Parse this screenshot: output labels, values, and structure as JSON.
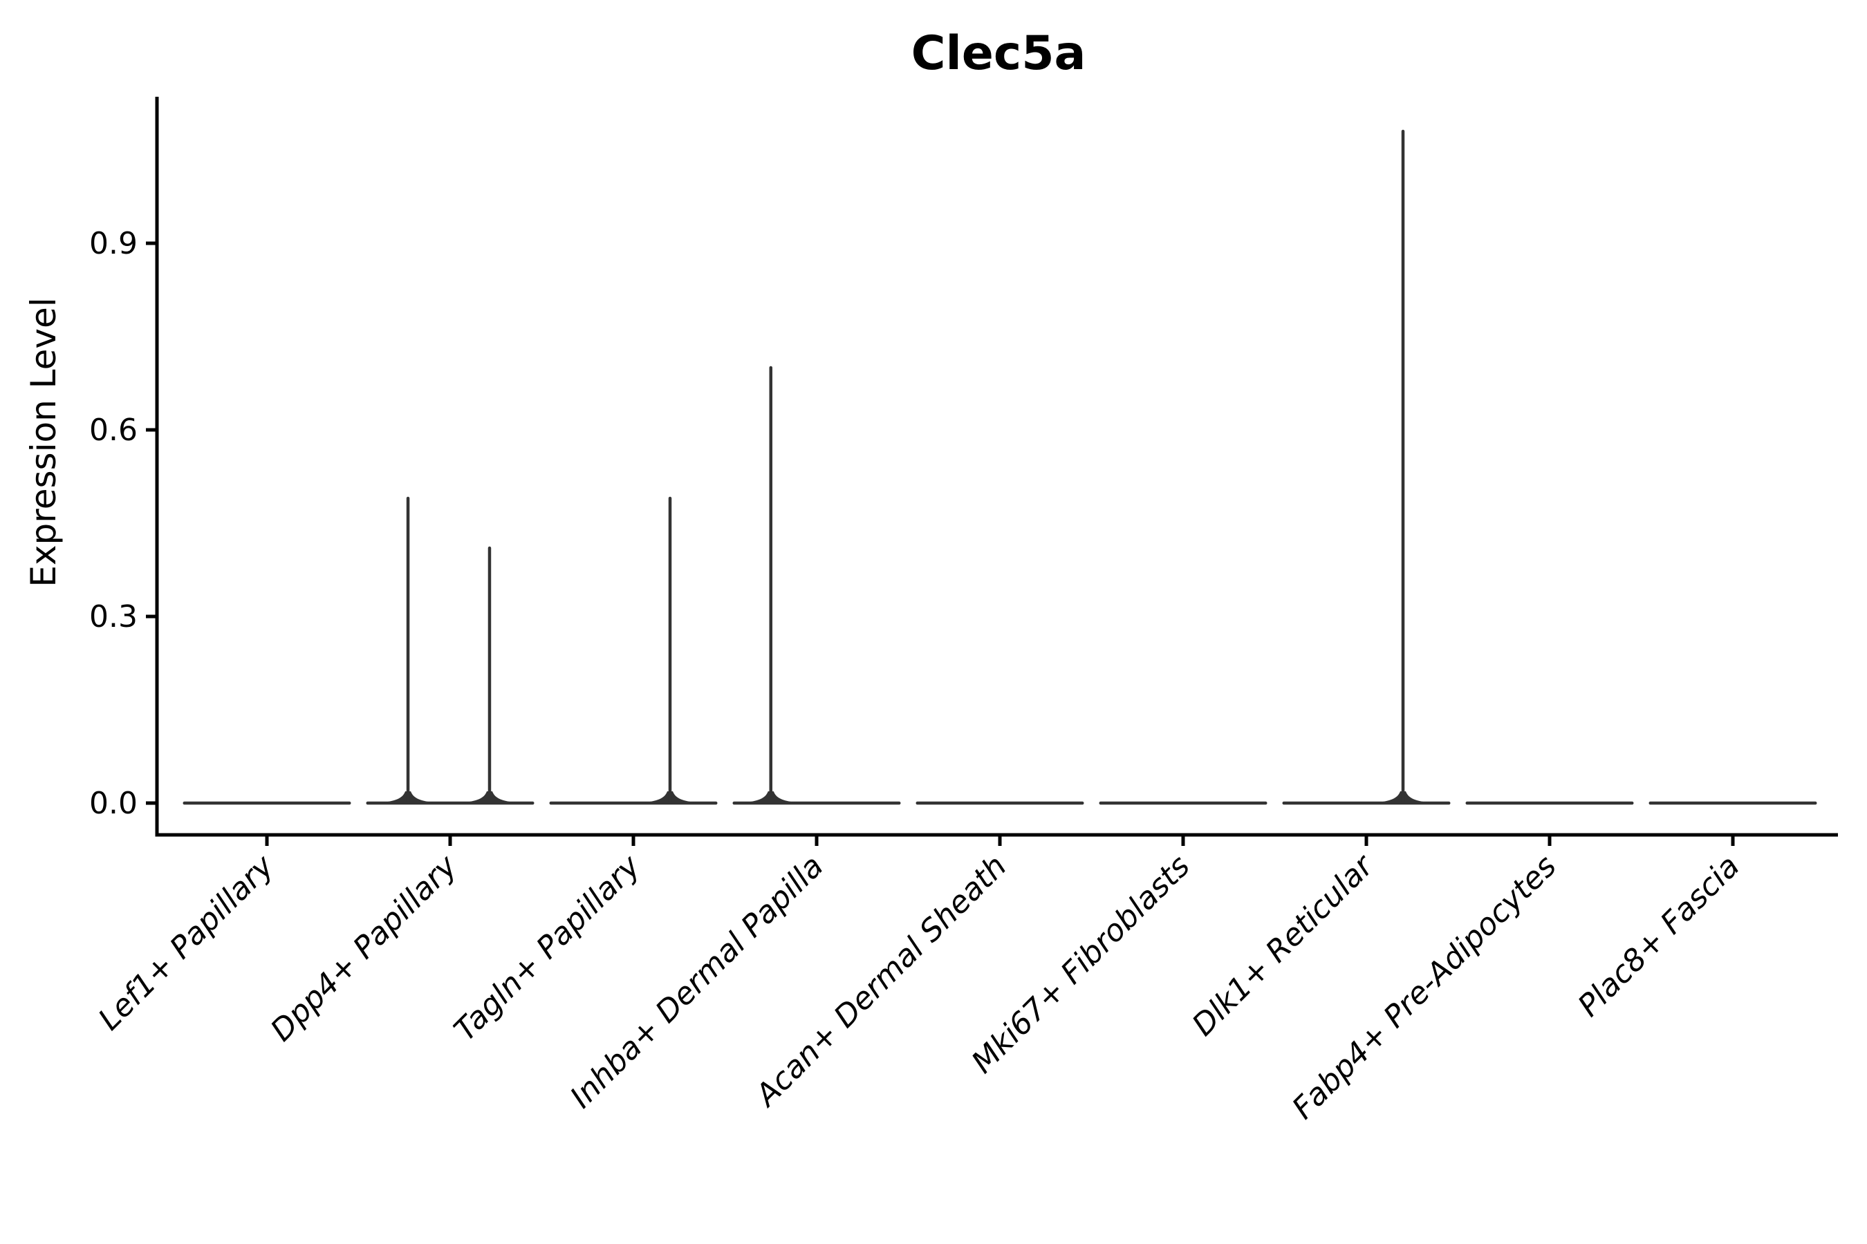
{
  "chart_data": {
    "type": "violin",
    "title": "Clec5a",
    "ylabel": "Expression Level",
    "xlabel": "",
    "ytick_labels": [
      "0.0",
      "0.3",
      "0.6",
      "0.9"
    ],
    "ytick_values": [
      0.0,
      0.3,
      0.6,
      0.9
    ],
    "ylim": [
      -0.05,
      1.14
    ],
    "grid": false,
    "legend": "none",
    "x_tick_rotation": 45,
    "violin_width_fraction": 0.9,
    "baseline_value": 0.0,
    "categories": [
      "Lef1+ Papillary",
      "Dpp4+ Papillary",
      "Tagln+ Papillary",
      "Inhba+ Dermal Papilla",
      "Acan+ Dermal Sheath",
      "Mki67+ Fibroblasts",
      "Dlk1+ Reticular",
      "Fabp4+ Pre-Adipocytes",
      "Plac8+ Fascia"
    ],
    "series": [
      {
        "label": "Lef1+ Papillary",
        "max_expression": 0.0,
        "spikes": []
      },
      {
        "label": "Dpp4+ Papillary",
        "max_expression": 0.49,
        "spikes": [
          {
            "offset": -0.23,
            "value": 0.49
          },
          {
            "offset": 0.215,
            "value": 0.41
          }
        ]
      },
      {
        "label": "Tagln+ Papillary",
        "max_expression": 0.49,
        "spikes": [
          {
            "offset": 0.2,
            "value": 0.49
          }
        ]
      },
      {
        "label": "Inhba+ Dermal Papilla",
        "max_expression": 0.7,
        "spikes": [
          {
            "offset": -0.25,
            "value": 0.7
          }
        ]
      },
      {
        "label": "Acan+ Dermal Sheath",
        "max_expression": 0.0,
        "spikes": []
      },
      {
        "label": "Mki67+ Fibroblasts",
        "max_expression": 0.0,
        "spikes": []
      },
      {
        "label": "Dlk1+ Reticular",
        "max_expression": 1.08,
        "spikes": [
          {
            "offset": 0.2,
            "value": 1.08
          }
        ]
      },
      {
        "label": "Fabp4+ Pre-Adipocytes",
        "max_expression": 0.0,
        "spikes": []
      },
      {
        "label": "Plac8+ Fascia",
        "max_expression": 0.0,
        "spikes": []
      }
    ],
    "colors": {
      "violin_stroke": "#333333",
      "axis": "#000000",
      "text": "#000000",
      "background": "#ffffff"
    }
  }
}
